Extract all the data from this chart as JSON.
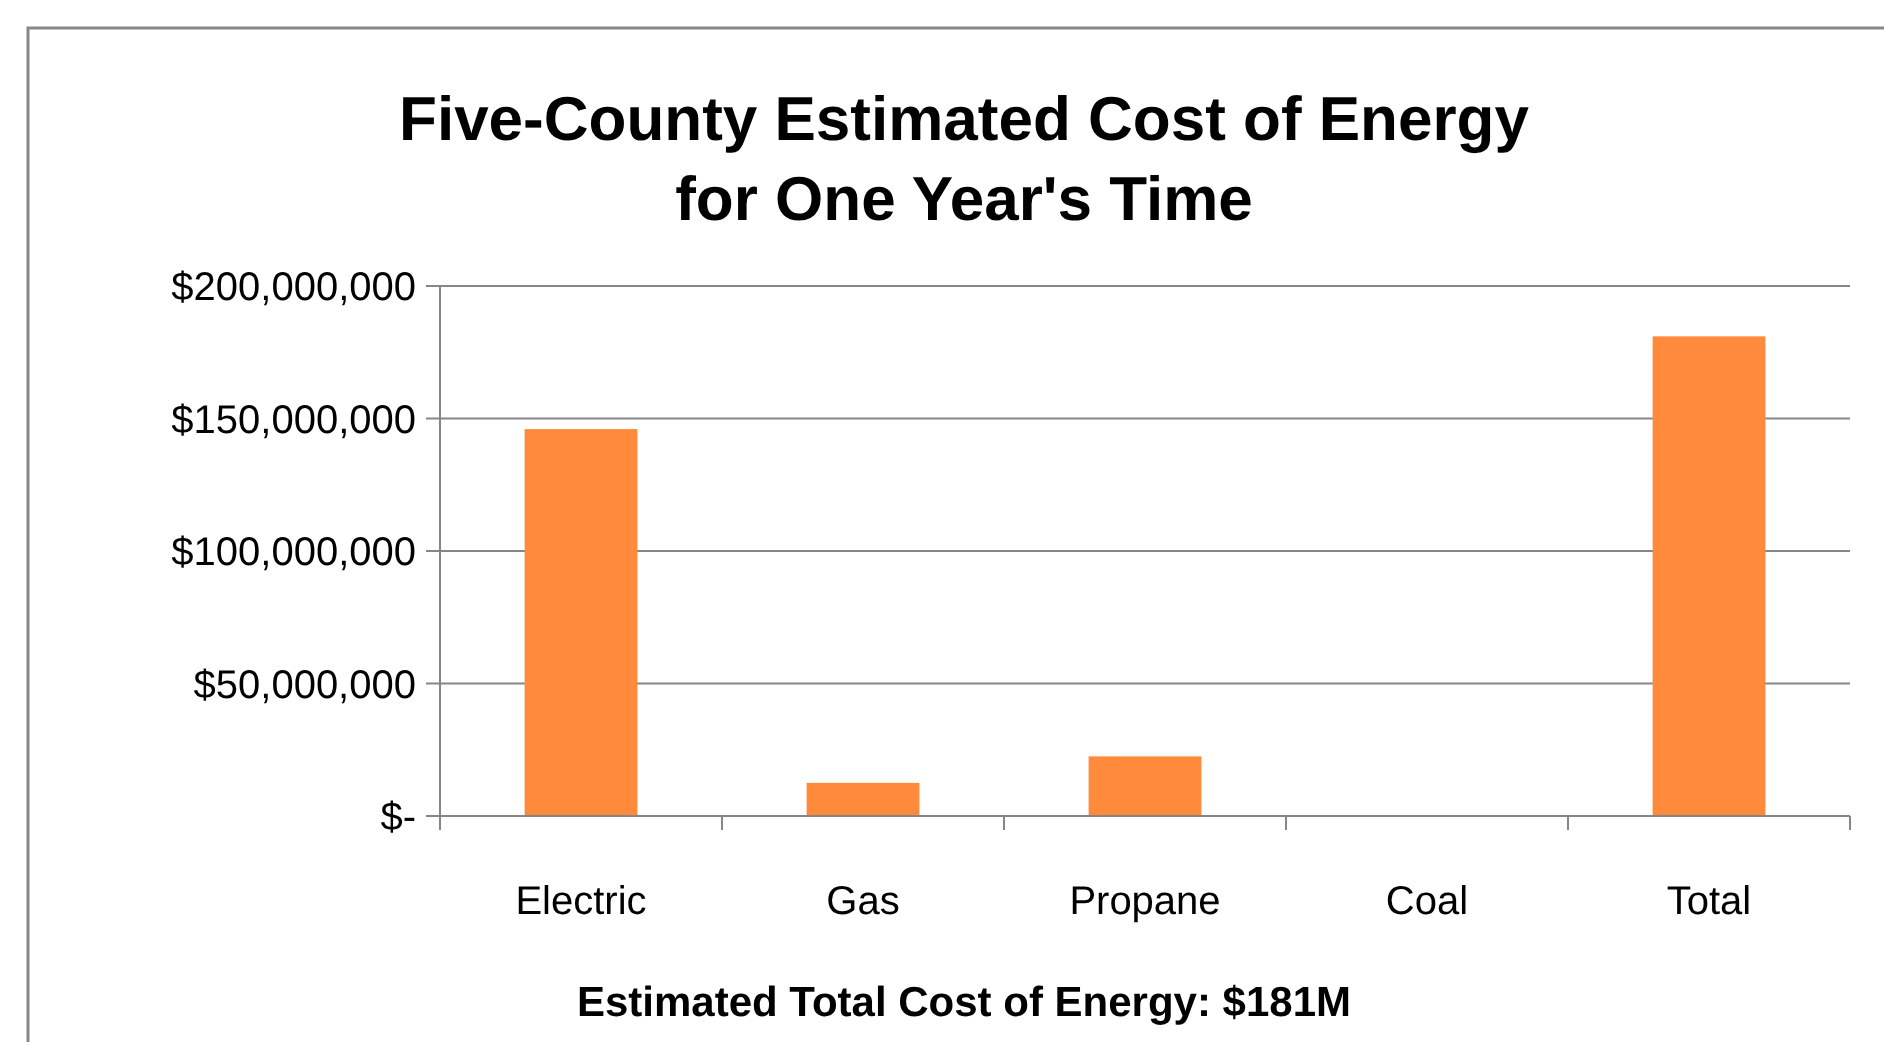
{
  "chart_data": {
    "type": "bar",
    "title": "Five-County Estimated Cost of Energy\nfor One Year's Time",
    "xlabel": "Estimated Total Cost of Energy: $181M",
    "categories": [
      "Electric",
      "Gas",
      "Propane",
      "Coal",
      "Total"
    ],
    "values": [
      146000000,
      12500000,
      22500000,
      0,
      181000000
    ],
    "color": "#ff8a3c",
    "ylim": [
      0,
      200000000
    ],
    "yticks": [
      {
        "value": 0,
        "label": "$-"
      },
      {
        "value": 50000000,
        "label": "$50,000,000"
      },
      {
        "value": 100000000,
        "label": "$100,000,000"
      },
      {
        "value": 150000000,
        "label": "$150,000,000"
      },
      {
        "value": 200000000,
        "label": "$200,000,000"
      }
    ],
    "grid": "y"
  }
}
